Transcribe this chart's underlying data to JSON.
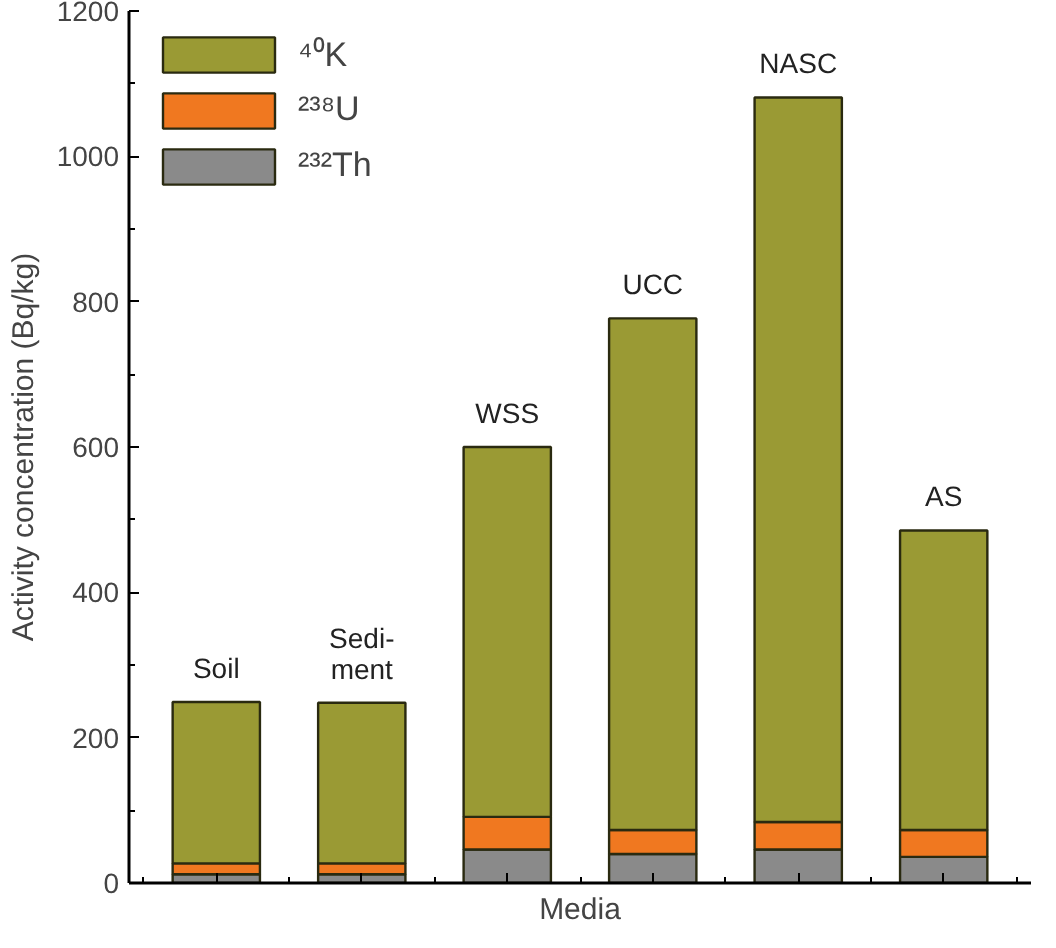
{
  "chart_data": {
    "type": "bar",
    "stacked": true,
    "xlabel": "Media",
    "ylabel": "Activity concentration (Bq/kg)",
    "categories": [
      "Soil",
      "Sedi-\nment",
      "WSS",
      "UCC",
      "NASC",
      "AS"
    ],
    "series": [
      {
        "name": "²³²Th",
        "color": "#8a8a8a",
        "values": [
          12,
          12,
          46,
          40,
          46,
          36
        ]
      },
      {
        "name": "²³⁸U",
        "color": "#f07820",
        "values": [
          15,
          15,
          45,
          33,
          38,
          37
        ]
      },
      {
        "name": "⁴⁰K",
        "color": "#9a9a34",
        "values": [
          222,
          221,
          509,
          704,
          997,
          412
        ]
      }
    ],
    "ylim": [
      0,
      1200
    ],
    "yticks": [
      0,
      200,
      400,
      600,
      800,
      1000,
      1200
    ],
    "tick_labels": "y",
    "grid": false,
    "legend": "top left"
  }
}
